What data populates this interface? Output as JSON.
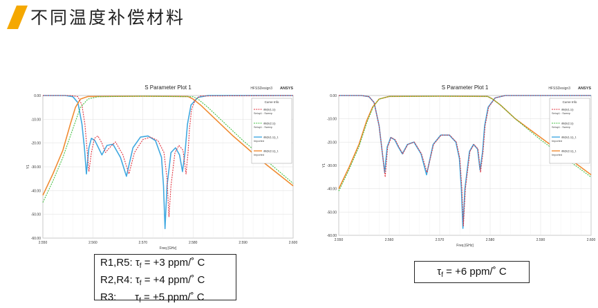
{
  "page": {
    "title": "不同温度补偿材料",
    "accent_color": "#f5a800"
  },
  "notes": {
    "left": [
      {
        "label": "R1,R5:",
        "symbol": "τ",
        "sub": "f",
        "value": " = +3 ppm/˚ C"
      },
      {
        "label": "R2,R4:",
        "symbol": "τ",
        "sub": "f",
        "value": " = +4 ppm/˚ C"
      },
      {
        "label": "R3:",
        "symbol": "τ",
        "sub": "f",
        "value": " = +5 ppm/˚ C"
      }
    ],
    "right": {
      "symbol": "τ",
      "sub": "f",
      "value": " = +6 ppm/˚ C"
    }
  },
  "chart_data": [
    {
      "type": "line",
      "title": "S Parameter Plot 1",
      "design_label": "HFSSDesign3",
      "brand": "ANSYS",
      "xlabel": "Freq [GHz]",
      "ylabel": "Y1",
      "xlim": [
        2.55,
        2.6
      ],
      "ylim": [
        -60,
        0
      ],
      "xticks": [
        "2.550",
        "2.560",
        "2.570",
        "2.580",
        "2.590",
        "2.600"
      ],
      "yticks": [
        "0.00",
        "-10.00",
        "-20.00",
        "-30.00",
        "-40.00",
        "-50.00",
        "-60.00"
      ],
      "grid": true,
      "legend": {
        "title": "Curve Info",
        "position": "top-right",
        "entries": [
          {
            "name": "dB(S(1,1))",
            "sub": "Setup1 : Sweep",
            "color": "#e0303c",
            "dash": true
          },
          {
            "name": "dB(S(2,1))",
            "sub": "Setup1 : Sweep",
            "color": "#3fbf3f",
            "dash": true
          },
          {
            "name": "dB(S(1,1))_1",
            "sub": "Imported",
            "color": "#3fa8e0",
            "dash": false
          },
          {
            "name": "dB(S(2,1))_1",
            "sub": "Imported",
            "color": "#f08a30",
            "dash": false
          }
        ]
      },
      "series": [
        {
          "name": "dB(S(1,1))",
          "color": "#e0303c",
          "dash": true,
          "points": [
            [
              2.55,
              0
            ],
            [
              2.5555,
              0
            ],
            [
              2.557,
              -0.5
            ],
            [
              2.5578,
              -4
            ],
            [
              2.5584,
              -12
            ],
            [
              2.5588,
              -22
            ],
            [
              2.5592,
              -32
            ],
            [
              2.5597,
              -24
            ],
            [
              2.5603,
              -18
            ],
            [
              2.561,
              -17
            ],
            [
              2.5618,
              -20
            ],
            [
              2.5625,
              -24
            ],
            [
              2.5633,
              -22
            ],
            [
              2.5645,
              -19.5
            ],
            [
              2.566,
              -25
            ],
            [
              2.5672,
              -33
            ],
            [
              2.5683,
              -24
            ],
            [
              2.57,
              -18.5
            ],
            [
              2.5715,
              -17.5
            ],
            [
              2.573,
              -19
            ],
            [
              2.5742,
              -24
            ],
            [
              2.5748,
              -35
            ],
            [
              2.5752,
              -51
            ],
            [
              2.5756,
              -38
            ],
            [
              2.5764,
              -24
            ],
            [
              2.5772,
              -21
            ],
            [
              2.578,
              -23
            ],
            [
              2.5786,
              -33
            ],
            [
              2.579,
              -24
            ],
            [
              2.5793,
              -14
            ],
            [
              2.5797,
              -6
            ],
            [
              2.5805,
              -1.5
            ],
            [
              2.5815,
              -0.2
            ],
            [
              2.6,
              0
            ]
          ]
        },
        {
          "name": "dB(S(2,1))",
          "color": "#3fbf3f",
          "dash": true,
          "points": [
            [
              2.55,
              -45
            ],
            [
              2.552,
              -36
            ],
            [
              2.554,
              -26
            ],
            [
              2.556,
              -14
            ],
            [
              2.5575,
              -5
            ],
            [
              2.559,
              -1.5
            ],
            [
              2.561,
              -0.5
            ],
            [
              2.57,
              -0.3
            ],
            [
              2.58,
              -0.5
            ],
            [
              2.581,
              -1.5
            ],
            [
              2.583,
              -5
            ],
            [
              2.586,
              -11
            ],
            [
              2.59,
              -19
            ],
            [
              2.595,
              -28
            ],
            [
              2.6,
              -37
            ]
          ]
        },
        {
          "name": "dB(S(1,1))_1",
          "color": "#3fa8e0",
          "dash": false,
          "points": [
            [
              2.55,
              0
            ],
            [
              2.5545,
              0
            ],
            [
              2.556,
              -0.5
            ],
            [
              2.557,
              -3
            ],
            [
              2.5578,
              -12
            ],
            [
              2.5583,
              -22
            ],
            [
              2.5587,
              -33
            ],
            [
              2.5592,
              -22
            ],
            [
              2.5597,
              -18
            ],
            [
              2.5604,
              -19
            ],
            [
              2.5611,
              -22
            ],
            [
              2.5618,
              -25
            ],
            [
              2.5628,
              -21
            ],
            [
              2.564,
              -20.5
            ],
            [
              2.5655,
              -26
            ],
            [
              2.5667,
              -34
            ],
            [
              2.568,
              -22
            ],
            [
              2.5695,
              -17.5
            ],
            [
              2.571,
              -17
            ],
            [
              2.5725,
              -19
            ],
            [
              2.5737,
              -26
            ],
            [
              2.5741,
              -38
            ],
            [
              2.5744,
              -56
            ],
            [
              2.5748,
              -38
            ],
            [
              2.5756,
              -24
            ],
            [
              2.5765,
              -22
            ],
            [
              2.5773,
              -25
            ],
            [
              2.5779,
              -32
            ],
            [
              2.5784,
              -24
            ],
            [
              2.5789,
              -12
            ],
            [
              2.5796,
              -4
            ],
            [
              2.581,
              -0.8
            ],
            [
              2.583,
              0
            ],
            [
              2.6,
              0
            ]
          ]
        },
        {
          "name": "dB(S(2,1))_1",
          "color": "#f08a30",
          "dash": false,
          "points": [
            [
              2.55,
              -42
            ],
            [
              2.552,
              -33
            ],
            [
              2.554,
              -23
            ],
            [
              2.5555,
              -12
            ],
            [
              2.5565,
              -5
            ],
            [
              2.5575,
              -1.5
            ],
            [
              2.559,
              -0.4
            ],
            [
              2.57,
              -0.3
            ],
            [
              2.579,
              -0.4
            ],
            [
              2.58,
              -1.5
            ],
            [
              2.5815,
              -4
            ],
            [
              2.584,
              -9
            ],
            [
              2.588,
              -17
            ],
            [
              2.594,
              -28
            ],
            [
              2.6,
              -38
            ]
          ]
        }
      ]
    },
    {
      "type": "line",
      "title": "S Parameter Plot 1",
      "design_label": "HFSSDesign3",
      "brand": "ANSYS",
      "xlabel": "Freq [GHz]",
      "ylabel": "Y1",
      "xlim": [
        2.55,
        2.6
      ],
      "ylim": [
        -60,
        0
      ],
      "xticks": [
        "2.550",
        "2.560",
        "2.570",
        "2.580",
        "2.590",
        "2.600"
      ],
      "yticks": [
        "0.00",
        "-10.00",
        "-20.00",
        "-30.00",
        "-40.00",
        "-50.00",
        "-60.00"
      ],
      "grid": true,
      "legend": {
        "title": "Curve Info",
        "position": "top-right",
        "entries": [
          {
            "name": "dB(S(1,1))",
            "sub": "Setup1 : Sweep",
            "color": "#e0303c",
            "dash": true
          },
          {
            "name": "dB(S(2,1))",
            "sub": "Setup1 : Sweep",
            "color": "#3fbf3f",
            "dash": true
          },
          {
            "name": "dB(S(1,1))_1",
            "sub": "Imported",
            "color": "#3fa8e0",
            "dash": false
          },
          {
            "name": "dB(S(2,1))_1",
            "sub": "Imported",
            "color": "#f08a30",
            "dash": false
          }
        ]
      },
      "series": [
        {
          "name": "dB(S(1,1))",
          "color": "#e0303c",
          "dash": true,
          "points": [
            [
              2.55,
              0
            ],
            [
              2.5545,
              0
            ],
            [
              2.556,
              -0.5
            ],
            [
              2.557,
              -3
            ],
            [
              2.558,
              -13
            ],
            [
              2.5586,
              -24
            ],
            [
              2.5592,
              -35
            ],
            [
              2.5597,
              -22
            ],
            [
              2.5604,
              -18
            ],
            [
              2.5612,
              -19
            ],
            [
              2.5619,
              -22
            ],
            [
              2.5627,
              -25
            ],
            [
              2.5637,
              -21
            ],
            [
              2.565,
              -20
            ],
            [
              2.5664,
              -25
            ],
            [
              2.5675,
              -33
            ],
            [
              2.5688,
              -21
            ],
            [
              2.5703,
              -17
            ],
            [
              2.572,
              -17
            ],
            [
              2.5733,
              -20
            ],
            [
              2.574,
              -27
            ],
            [
              2.5744,
              -40
            ],
            [
              2.5747,
              -56
            ],
            [
              2.5751,
              -40
            ],
            [
              2.576,
              -24
            ],
            [
              2.5768,
              -21
            ],
            [
              2.5776,
              -23
            ],
            [
              2.5781,
              -33
            ],
            [
              2.5786,
              -24
            ],
            [
              2.579,
              -13
            ],
            [
              2.5797,
              -5
            ],
            [
              2.581,
              -1
            ],
            [
              2.583,
              0
            ],
            [
              2.6,
              0
            ]
          ]
        },
        {
          "name": "dB(S(2,1))",
          "color": "#3fbf3f",
          "dash": true,
          "points": [
            [
              2.55,
              -41
            ],
            [
              2.552,
              -32
            ],
            [
              2.554,
              -22
            ],
            [
              2.5555,
              -12
            ],
            [
              2.5568,
              -5
            ],
            [
              2.558,
              -1.5
            ],
            [
              2.56,
              -0.4
            ],
            [
              2.57,
              -0.3
            ],
            [
              2.5795,
              -0.4
            ],
            [
              2.5805,
              -1.5
            ],
            [
              2.582,
              -4
            ],
            [
              2.585,
              -10
            ],
            [
              2.59,
              -19
            ],
            [
              2.595,
              -27
            ],
            [
              2.6,
              -35
            ]
          ]
        },
        {
          "name": "dB(S(1,1))_1",
          "color": "#3fa8e0",
          "dash": false,
          "points": [
            [
              2.55,
              0
            ],
            [
              2.5545,
              0
            ],
            [
              2.556,
              -0.5
            ],
            [
              2.557,
              -3
            ],
            [
              2.558,
              -13
            ],
            [
              2.5586,
              -24
            ],
            [
              2.5591,
              -33
            ],
            [
              2.5596,
              -22
            ],
            [
              2.5603,
              -18
            ],
            [
              2.5611,
              -19
            ],
            [
              2.5618,
              -22
            ],
            [
              2.5626,
              -25
            ],
            [
              2.5636,
              -21
            ],
            [
              2.5649,
              -20
            ],
            [
              2.5663,
              -25
            ],
            [
              2.5674,
              -34
            ],
            [
              2.5687,
              -21
            ],
            [
              2.5702,
              -17
            ],
            [
              2.5719,
              -17
            ],
            [
              2.5732,
              -20
            ],
            [
              2.5739,
              -27
            ],
            [
              2.5743,
              -40
            ],
            [
              2.5746,
              -57
            ],
            [
              2.575,
              -40
            ],
            [
              2.5759,
              -24
            ],
            [
              2.5767,
              -21
            ],
            [
              2.5775,
              -23
            ],
            [
              2.578,
              -32
            ],
            [
              2.5785,
              -24
            ],
            [
              2.5789,
              -13
            ],
            [
              2.5796,
              -5
            ],
            [
              2.581,
              -1
            ],
            [
              2.583,
              0
            ],
            [
              2.6,
              0
            ]
          ]
        },
        {
          "name": "dB(S(2,1))_1",
          "color": "#f08a30",
          "dash": false,
          "points": [
            [
              2.55,
              -40
            ],
            [
              2.552,
              -31
            ],
            [
              2.554,
              -21
            ],
            [
              2.5555,
              -11
            ],
            [
              2.5567,
              -5
            ],
            [
              2.558,
              -1.5
            ],
            [
              2.56,
              -0.4
            ],
            [
              2.57,
              -0.3
            ],
            [
              2.5795,
              -0.4
            ],
            [
              2.5805,
              -1.5
            ],
            [
              2.582,
              -4
            ],
            [
              2.585,
              -10
            ],
            [
              2.59,
              -18
            ],
            [
              2.595,
              -26
            ],
            [
              2.6,
              -34
            ]
          ]
        }
      ]
    }
  ]
}
